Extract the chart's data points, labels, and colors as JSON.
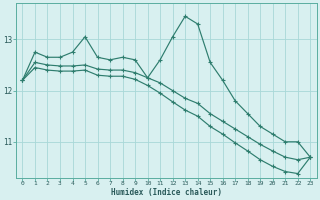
{
  "xlabel": "Humidex (Indice chaleur)",
  "x": [
    0,
    1,
    2,
    3,
    4,
    5,
    6,
    7,
    8,
    9,
    10,
    11,
    12,
    13,
    14,
    15,
    16,
    17,
    18,
    19,
    20,
    21,
    22,
    23
  ],
  "line1": [
    12.2,
    12.75,
    12.65,
    12.65,
    12.75,
    13.05,
    12.65,
    12.6,
    12.65,
    12.6,
    12.25,
    12.6,
    13.05,
    13.45,
    13.3,
    12.55,
    12.2,
    11.8,
    11.55,
    11.3,
    11.15,
    11.0,
    11.0,
    10.7
  ],
  "line2": [
    12.2,
    12.55,
    12.5,
    12.48,
    12.48,
    12.5,
    12.42,
    12.4,
    12.4,
    12.35,
    12.25,
    12.15,
    12.0,
    11.85,
    11.75,
    11.55,
    11.4,
    11.25,
    11.1,
    10.95,
    10.82,
    10.7,
    10.65,
    10.7
  ],
  "line3": [
    12.2,
    12.45,
    12.4,
    12.38,
    12.38,
    12.4,
    12.3,
    12.28,
    12.28,
    12.22,
    12.1,
    11.95,
    11.78,
    11.62,
    11.5,
    11.3,
    11.15,
    10.98,
    10.82,
    10.65,
    10.52,
    10.42,
    10.38,
    10.7
  ],
  "line_color": "#2e7d6e",
  "bg_color": "#d8f0f0",
  "grid_color": "#a8d8d8",
  "ylim": [
    10.3,
    13.7
  ],
  "yticks": [
    11,
    12,
    13
  ],
  "xlim": [
    -0.5,
    23.5
  ],
  "marker": "+",
  "markersize": 3.5,
  "linewidth": 0.85
}
